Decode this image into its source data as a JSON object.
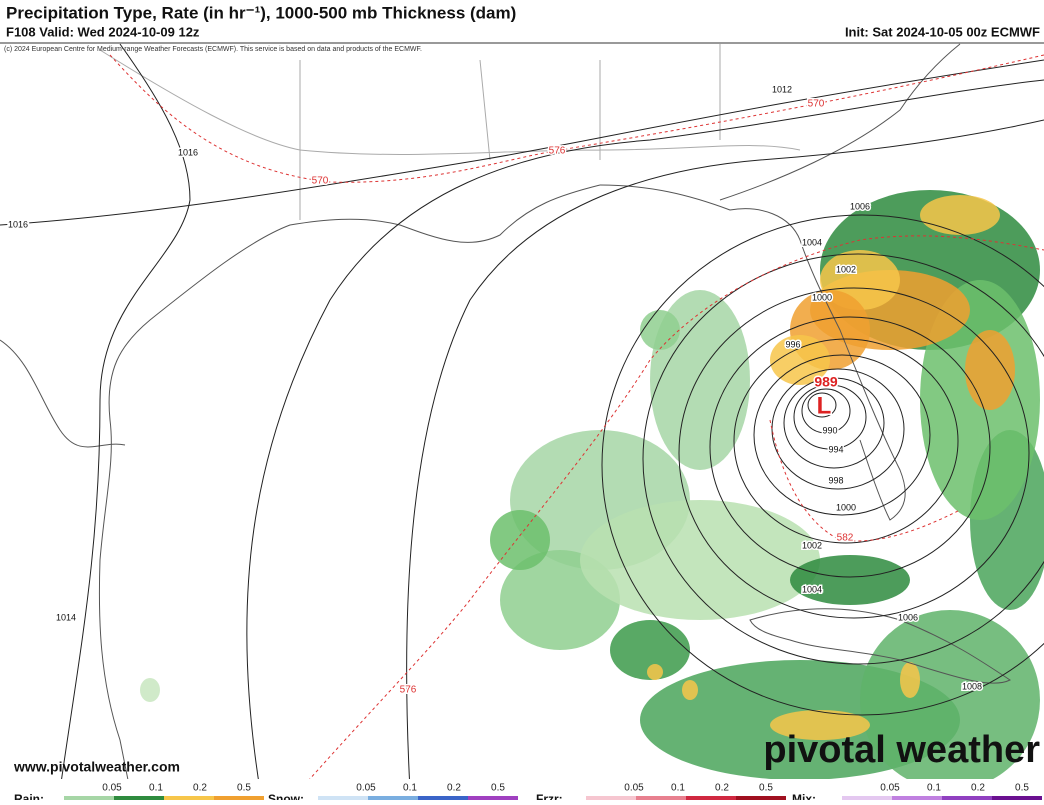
{
  "header": {
    "title": "Precipitation Type, Rate (in hr⁻¹), 1000-500 mb Thickness (dam)",
    "valid": "F108 Valid: Wed 2024-10-09 12z",
    "init": "Init: Sat 2024-10-05 00z ECMWF",
    "credit": "(c) 2024 European Centre for Medium-range Weather Forecasts (ECMWF). This service is based on data and products of the ECMWF."
  },
  "map": {
    "isobar_labels": [
      "1012",
      "1016",
      "1016",
      "1006",
      "1004",
      "1002",
      "1000",
      "996",
      "990",
      "994",
      "998",
      "1000",
      "1002",
      "1004",
      "1006",
      "1008",
      "1014"
    ],
    "center_pressure": "989",
    "low_label": "L",
    "thickness_labels": [
      "570",
      "576",
      "570",
      "582",
      "576"
    ]
  },
  "footer": {
    "url": "www.pivotalweather.com",
    "logo": "pivotal weather"
  },
  "legend": {
    "groups": [
      {
        "name": "Rain:",
        "ticks": [
          "0.05",
          "0.1",
          "0.2",
          "0.5"
        ]
      },
      {
        "name": "Snow:",
        "ticks": [
          "0.05",
          "0.1",
          "0.2",
          "0.5"
        ]
      },
      {
        "name": "Frzr:",
        "ticks": [
          "0.05",
          "0.1",
          "0.2",
          "0.5"
        ]
      },
      {
        "name": "Mix:",
        "ticks": [
          "0.05",
          "0.1",
          "0.2",
          "0.5"
        ]
      }
    ]
  }
}
